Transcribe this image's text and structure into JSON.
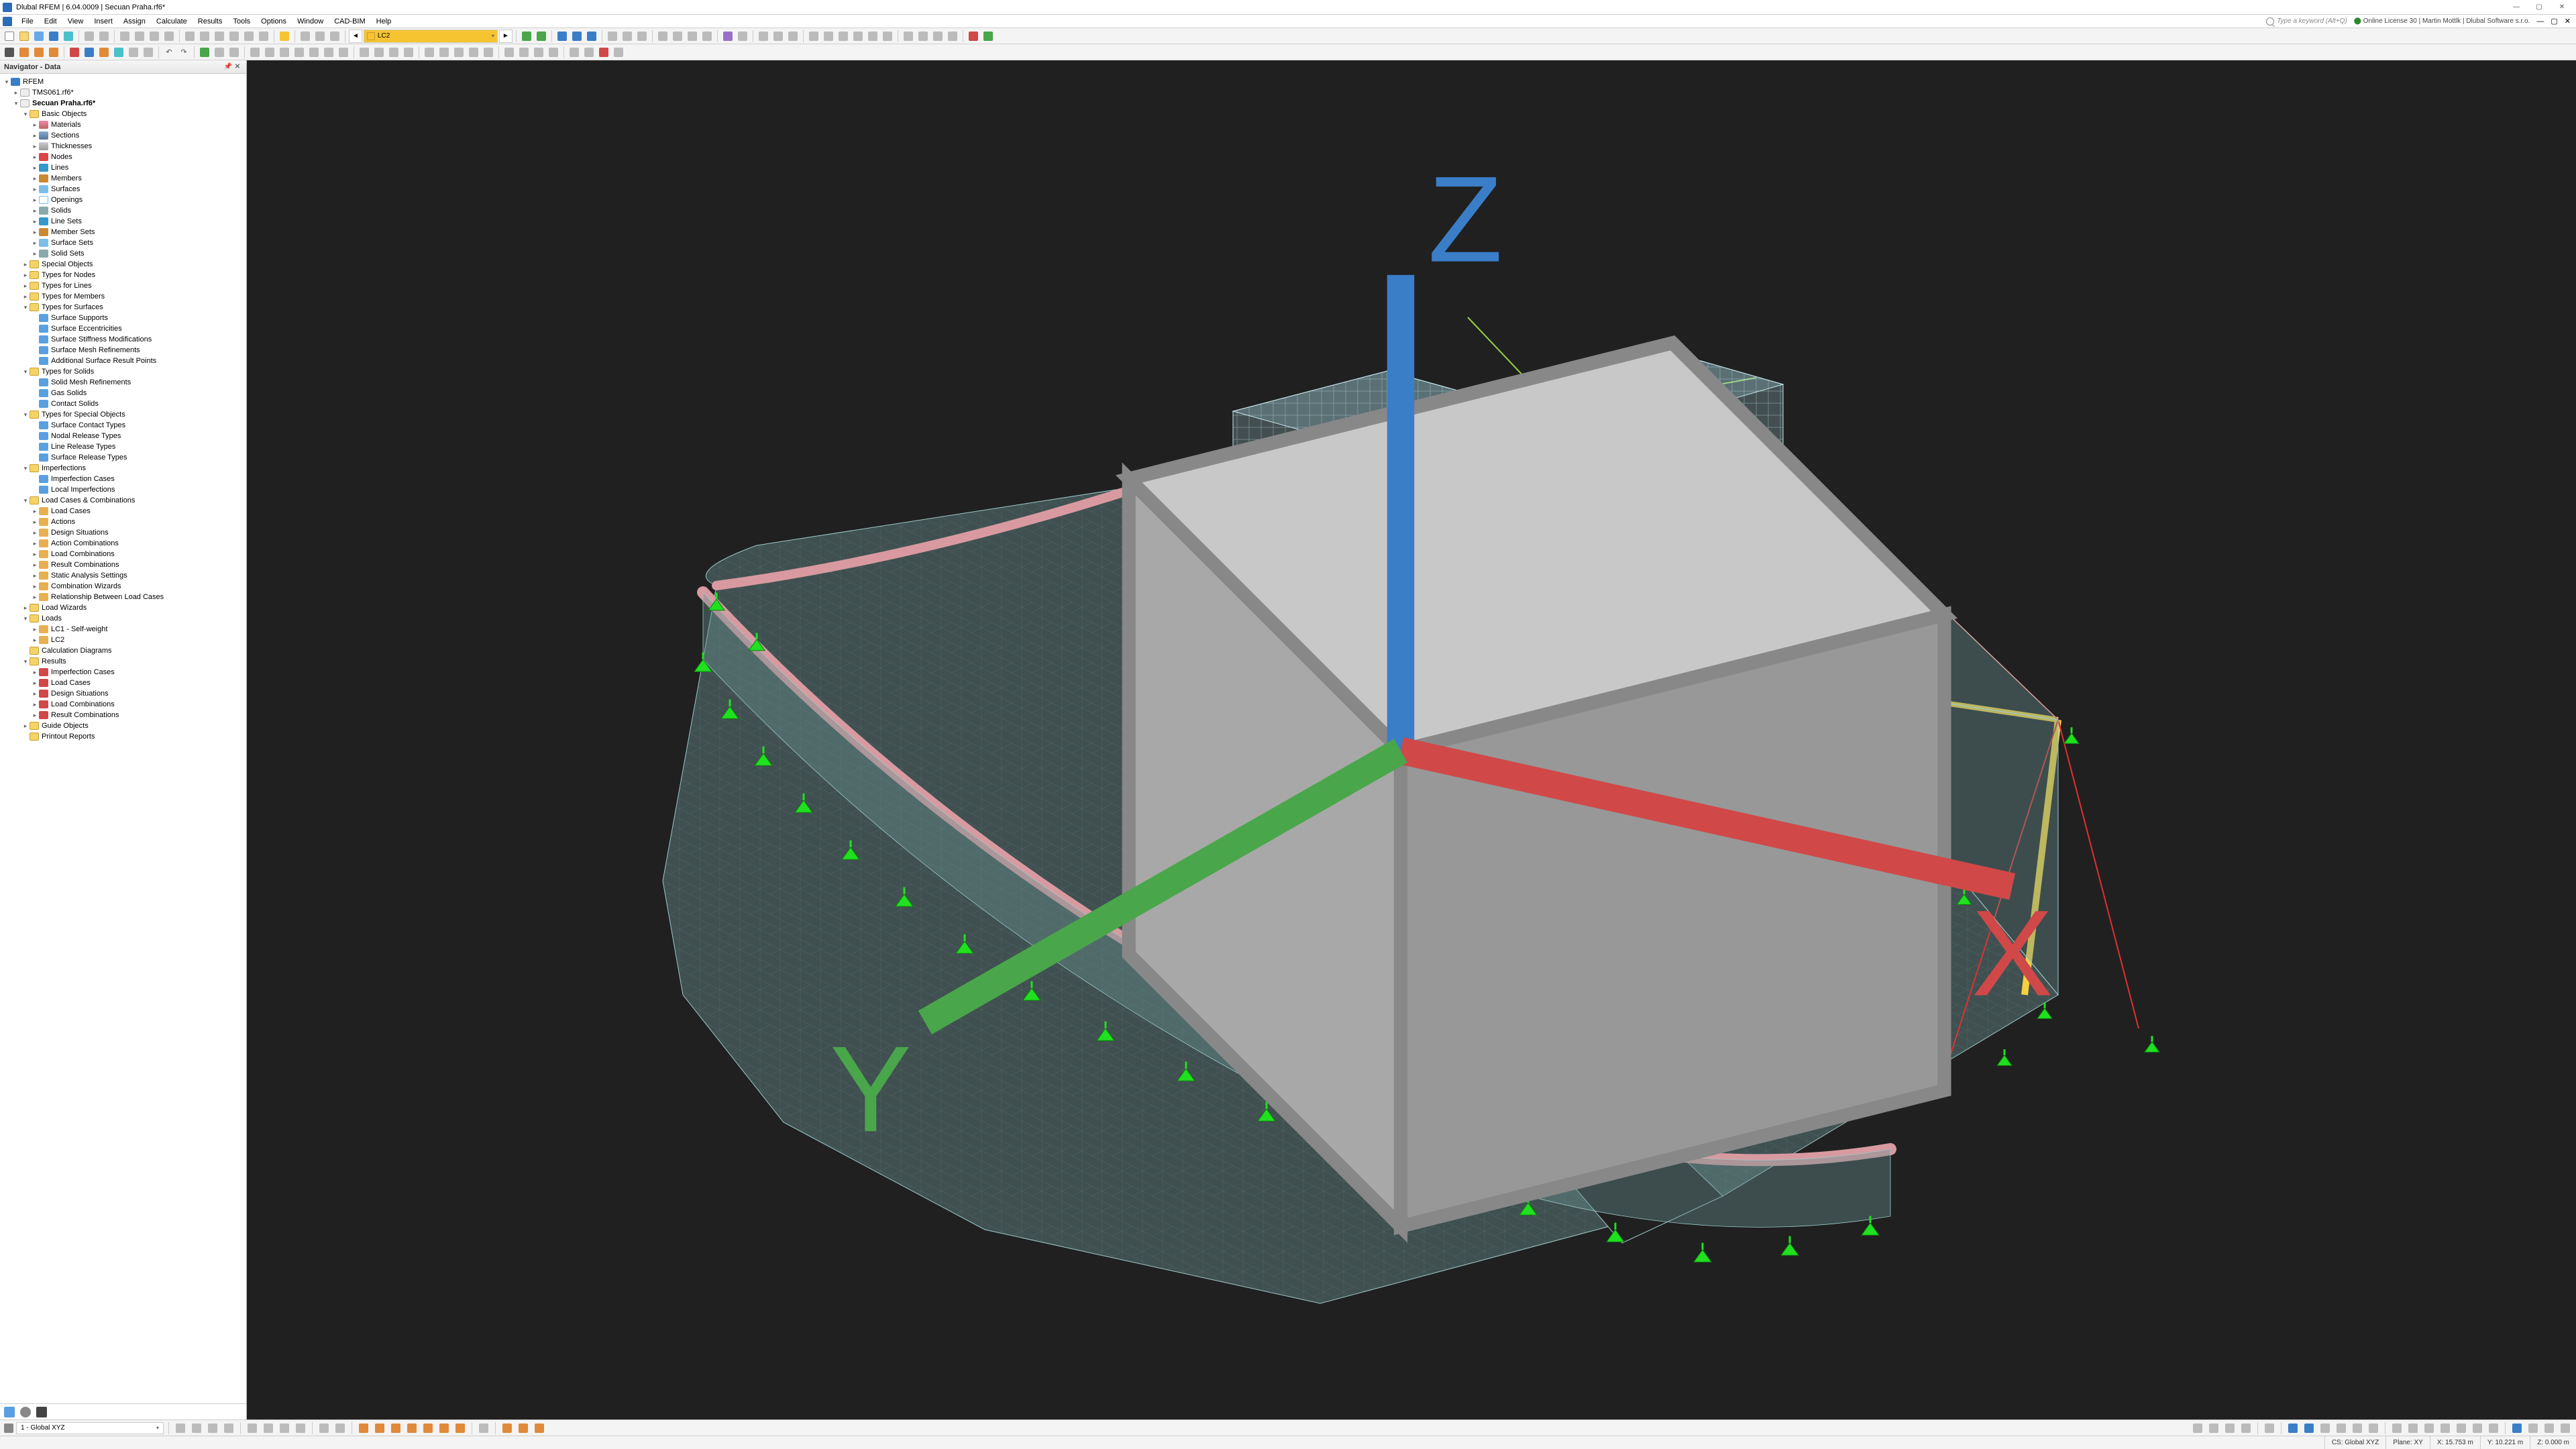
{
  "app": {
    "title": "Dlubal RFEM | 6.04.0009 | Secuan Praha.rf6*",
    "license": "Online License 30 | Martin Mottlk | Dlubal Software s.r.o.",
    "search_placeholder": "Type a keyword (Alt+Q)"
  },
  "menu": [
    "File",
    "Edit",
    "View",
    "Insert",
    "Assign",
    "Calculate",
    "Results",
    "Tools",
    "Options",
    "Window",
    "CAD-BIM",
    "Help"
  ],
  "toolbar1": {
    "loadcase_label": "LC2",
    "loadcase_color": "#f5c430"
  },
  "navigator": {
    "title": "Navigator - Data",
    "root": "RFEM",
    "files": [
      "TMS061.rf6*",
      "Secuan Praha.rf6*"
    ],
    "basic_objects": {
      "label": "Basic Objects",
      "items": [
        "Materials",
        "Sections",
        "Thicknesses",
        "Nodes",
        "Lines",
        "Members",
        "Surfaces",
        "Openings",
        "Solids",
        "Line Sets",
        "Member Sets",
        "Surface Sets",
        "Solid Sets"
      ]
    },
    "special_objects": "Special Objects",
    "types_group": [
      "Types for Nodes",
      "Types for Lines",
      "Types for Members"
    ],
    "types_surfaces": {
      "label": "Types for Surfaces",
      "items": [
        "Surface Supports",
        "Surface Eccentricities",
        "Surface Stiffness Modifications",
        "Surface Mesh Refinements",
        "Additional Surface Result Points"
      ]
    },
    "types_solids": {
      "label": "Types for Solids",
      "items": [
        "Solid Mesh Refinements",
        "Gas Solids",
        "Contact Solids"
      ]
    },
    "types_special": {
      "label": "Types for Special Objects",
      "items": [
        "Surface Contact Types",
        "Nodal Release Types",
        "Line Release Types",
        "Surface Release Types"
      ]
    },
    "imperfections": {
      "label": "Imperfections",
      "items": [
        "Imperfection Cases",
        "Local Imperfections"
      ]
    },
    "lcc": {
      "label": "Load Cases & Combinations",
      "items": [
        "Load Cases",
        "Actions",
        "Design Situations",
        "Action Combinations",
        "Load Combinations",
        "Result Combinations",
        "Static Analysis Settings",
        "Combination Wizards",
        "Relationship Between Load Cases"
      ]
    },
    "load_wizards": "Load Wizards",
    "loads": {
      "label": "Loads",
      "items": [
        "LC1 - Self-weight",
        "LC2"
      ]
    },
    "calc_diagrams": "Calculation Diagrams",
    "results": {
      "label": "Results",
      "items": [
        "Imperfection Cases",
        "Load Cases",
        "Design Situations",
        "Load Combinations",
        "Result Combinations"
      ]
    },
    "guide": "Guide Objects",
    "printout": "Printout Reports"
  },
  "bottom": {
    "coord_combo": "1 - Global XYZ"
  },
  "status": {
    "cs": "CS: Global XYZ",
    "plane": "Plane: XY",
    "x": "X: 15.753 m",
    "y": "Y: 10.221 m",
    "z": "Z: 0.000 m"
  },
  "viewport": {
    "background": "#202020",
    "surface_fill": "#7aa8a8",
    "surface_opacity": 0.45,
    "mesh_stroke": "#9ec8c8",
    "edge_beam": "#d89aa0",
    "yellow_member": "#f5d040",
    "red_line": "#e03030",
    "green_line": "#9ad040",
    "support_fill": "#20e020",
    "support_stroke": "#0a800a",
    "box_fill": "#a8d8e0",
    "box_opacity": 0.25
  }
}
